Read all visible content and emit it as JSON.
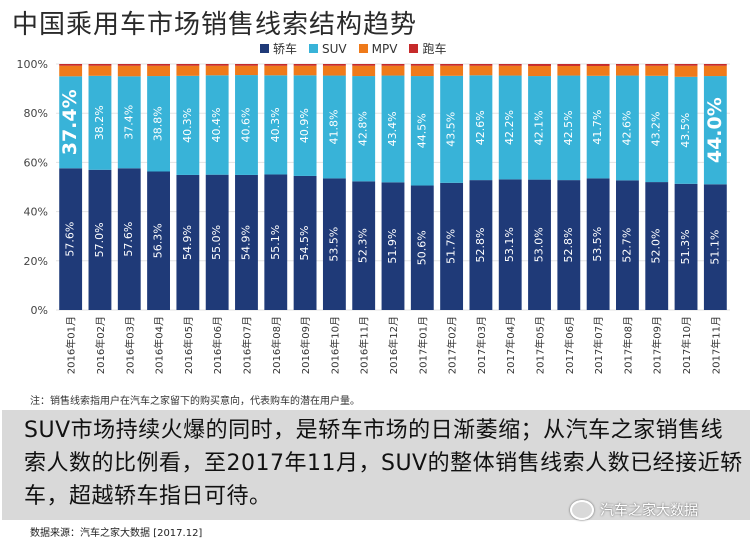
{
  "title": "中国乘用车市场销售线索结构趋势",
  "legend": [
    {
      "label": "轿车",
      "color": "#1f3a78"
    },
    {
      "label": "SUV",
      "color": "#38b3d8"
    },
    {
      "label": "MPV",
      "color": "#ef7a1a"
    },
    {
      "label": "跑车",
      "color": "#c62a2a"
    }
  ],
  "chart_data": {
    "type": "bar",
    "stacked": true,
    "categories": [
      "2016年01月",
      "2016年02月",
      "2016年03月",
      "2016年04月",
      "2016年05月",
      "2016年06月",
      "2016年07月",
      "2016年08月",
      "2016年09月",
      "2016年10月",
      "2016年11月",
      "2016年12月",
      "2017年01月",
      "2017年02月",
      "2017年03月",
      "2017年04月",
      "2017年05月",
      "2017年06月",
      "2017年07月",
      "2017年08月",
      "2017年09月",
      "2017年10月",
      "2017年11月"
    ],
    "series": [
      {
        "name": "轿车",
        "color": "#1f3a78",
        "values": [
          57.6,
          57.0,
          57.6,
          56.3,
          54.9,
          55.0,
          54.9,
          55.1,
          54.5,
          53.5,
          52.3,
          51.9,
          50.6,
          51.7,
          52.8,
          53.1,
          53.0,
          52.8,
          53.5,
          52.7,
          52.0,
          51.3,
          51.1
        ]
      },
      {
        "name": "SUV",
        "color": "#38b3d8",
        "values": [
          37.4,
          38.2,
          37.4,
          38.8,
          40.3,
          40.4,
          40.6,
          40.3,
          40.9,
          41.8,
          42.8,
          43.4,
          44.5,
          43.5,
          42.6,
          42.2,
          42.1,
          42.5,
          41.7,
          42.6,
          43.2,
          43.5,
          44.0
        ]
      },
      {
        "name": "MPV",
        "color": "#ef7a1a",
        "values": [
          4.3,
          4.1,
          4.3,
          4.2,
          4.1,
          3.9,
          3.8,
          3.9,
          3.9,
          4.0,
          4.2,
          4.0,
          4.2,
          4.1,
          3.9,
          4.0,
          4.1,
          3.9,
          4.0,
          4.0,
          4.1,
          4.5,
          4.2
        ]
      },
      {
        "name": "跑车",
        "color": "#c62a2a",
        "values": [
          0.7,
          0.7,
          0.7,
          0.7,
          0.7,
          0.7,
          0.7,
          0.7,
          0.7,
          0.7,
          0.7,
          0.7,
          0.7,
          0.7,
          0.7,
          0.7,
          0.8,
          0.8,
          0.8,
          0.7,
          0.7,
          0.7,
          0.7
        ]
      }
    ],
    "sedan_labels": [
      "57.6%",
      "57.0%",
      "57.6%",
      "56.3%",
      "54.9%",
      "55.0%",
      "54.9%",
      "55.1%",
      "54.5%",
      "53.5%",
      "52.3%",
      "51.9%",
      "50.6%",
      "51.7%",
      "52.8%",
      "53.1%",
      "53.0%",
      "52.8%",
      "53.5%",
      "52.7%",
      "52.0%",
      "51.3%",
      "51.1%"
    ],
    "suv_labels": [
      "37.4%",
      "38.2%",
      "37.4%",
      "38.8%",
      "40.3%",
      "40.4%",
      "40.6%",
      "40.3%",
      "40.9%",
      "41.8%",
      "42.8%",
      "43.4%",
      "44.5%",
      "43.5%",
      "42.6%",
      "42.2%",
      "42.1%",
      "42.5%",
      "41.7%",
      "42.6%",
      "43.2%",
      "43.5%",
      "44.0%"
    ],
    "yticks": [
      "0%",
      "20%",
      "40%",
      "60%",
      "80%",
      "100%"
    ],
    "ylim": [
      0,
      100
    ],
    "legend_position": "top"
  },
  "note": "注：销售线索指用户在汽车之家留下的购买意向，代表购车的潜在用户量。",
  "caption": "SUV市场持续火爆的同时，是轿车市场的日渐萎缩；从汽车之家销售线索人数的比例看，至2017年11月，SUV的整体销售线索人数已经接近轿车，超越轿车指日可待。",
  "source": "数据来源：汽车之家大数据 [2017.12]",
  "watermark": "汽车之家大数据"
}
